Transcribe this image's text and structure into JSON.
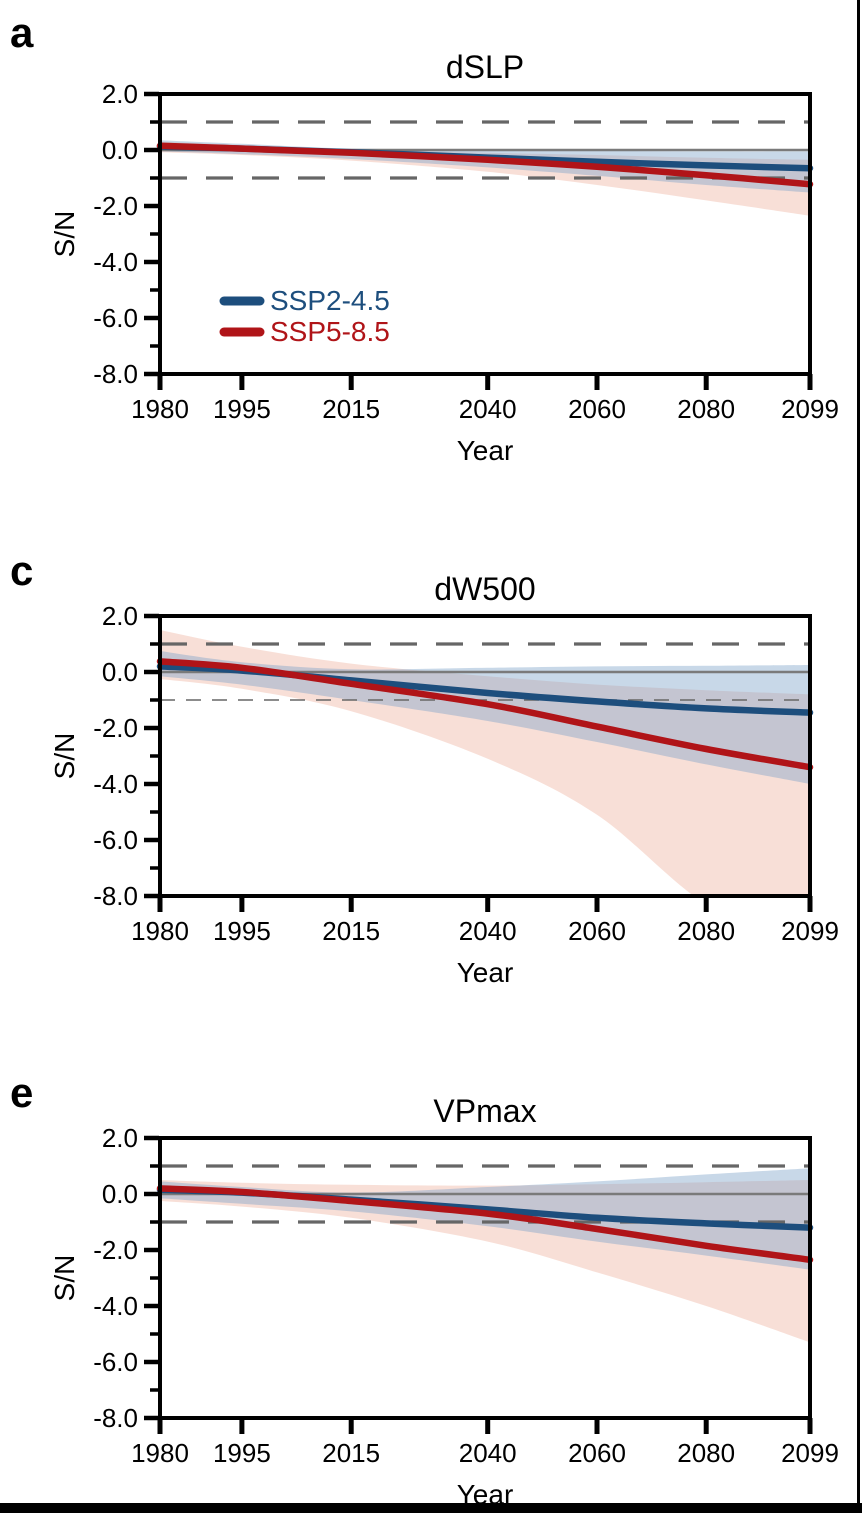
{
  "figure": {
    "xlabel": "Year",
    "ylabel": "S/N"
  },
  "chart_data": [
    {
      "type": "line",
      "panel_label": "a",
      "title": "dSLP",
      "xlabel": "Year",
      "ylabel": "S/N",
      "ylim": [
        2.0,
        -8.0
      ],
      "xlim": [
        1980,
        2099
      ],
      "grid": false,
      "x_tick_years": [
        1980,
        1995,
        2015,
        2040,
        2060,
        2080,
        2099
      ],
      "x_tick_labels": [
        "1980",
        "1995",
        "2015",
        "2040",
        "2060",
        "2080",
        "2099"
      ],
      "y_tick_values": [
        2.0,
        0.0,
        -2.0,
        -4.0,
        -6.0,
        -8.0
      ],
      "y_tick_labels": [
        "2.0",
        "0.0",
        "-2.0",
        "-4.0",
        "-6.0",
        "-8.0"
      ],
      "y_minor_ticks": [
        1.0,
        -1.0,
        -3.0,
        -5.0,
        -7.0
      ],
      "reference_lines": [
        {
          "value": 1.0,
          "style": "dashed",
          "weight": "normal"
        },
        {
          "value": 0.0,
          "style": "solid",
          "weight": "normal"
        },
        {
          "value": -1.0,
          "style": "dashed",
          "weight": "normal"
        }
      ],
      "anchor_years": [
        1980,
        1995,
        2015,
        2040,
        2060,
        2080,
        2099
      ],
      "series": [
        {
          "name": "SSP2-4.5",
          "color": "#1d4e7d",
          "band_color": "#7da3c7",
          "band_opacity": 0.42,
          "values": [
            0.12,
            0.05,
            -0.08,
            -0.27,
            -0.42,
            -0.55,
            -0.65
          ],
          "band_upper": [
            0.35,
            0.22,
            0.05,
            -0.02,
            -0.03,
            -0.05,
            -0.05
          ],
          "band_lower": [
            -0.05,
            -0.15,
            -0.32,
            -0.62,
            -0.92,
            -1.25,
            -1.52
          ]
        },
        {
          "name": "SSP5-8.5",
          "color": "#b01418",
          "band_color": "#e9967a",
          "band_opacity": 0.3,
          "values": [
            0.15,
            0.05,
            -0.1,
            -0.35,
            -0.6,
            -0.9,
            -1.22
          ],
          "band_upper": [
            0.3,
            0.18,
            0.0,
            -0.1,
            -0.18,
            -0.28,
            -0.35
          ],
          "band_lower": [
            -0.08,
            -0.18,
            -0.38,
            -0.78,
            -1.25,
            -1.8,
            -2.35
          ]
        }
      ],
      "legend": {
        "position": "lower-left",
        "entries": [
          "SSP2-4.5",
          "SSP5-8.5"
        ]
      }
    },
    {
      "type": "line",
      "panel_label": "c",
      "title": "dW500",
      "xlabel": "Year",
      "ylabel": "S/N",
      "ylim": [
        2.0,
        -8.0
      ],
      "xlim": [
        1980,
        2099
      ],
      "grid": false,
      "x_tick_years": [
        1980,
        1995,
        2015,
        2040,
        2060,
        2080,
        2099
      ],
      "x_tick_labels": [
        "1980",
        "1995",
        "2015",
        "2040",
        "2060",
        "2080",
        "2099"
      ],
      "y_tick_values": [
        2.0,
        0.0,
        -2.0,
        -4.0,
        -6.0,
        -8.0
      ],
      "y_tick_labels": [
        "2.0",
        "0.0",
        "-2.0",
        "-4.0",
        "-6.0",
        "-8.0"
      ],
      "y_minor_ticks": [
        1.0,
        -1.0,
        -3.0,
        -5.0,
        -7.0
      ],
      "reference_lines": [
        {
          "value": 1.0,
          "style": "dashed",
          "weight": "normal"
        },
        {
          "value": 0.0,
          "style": "solid",
          "weight": "normal"
        },
        {
          "value": -1.0,
          "style": "dashed",
          "weight": "thin"
        }
      ],
      "anchor_years": [
        1980,
        1995,
        2015,
        2040,
        2060,
        2080,
        2099
      ],
      "series": [
        {
          "name": "SSP2-4.5",
          "color": "#1d4e7d",
          "band_color": "#7da3c7",
          "band_opacity": 0.42,
          "values": [
            0.2,
            0.05,
            -0.3,
            -0.75,
            -1.05,
            -1.3,
            -1.45
          ],
          "band_upper": [
            0.75,
            0.35,
            0.1,
            0.15,
            0.2,
            0.22,
            0.25
          ],
          "band_lower": [
            -0.15,
            -0.45,
            -1.0,
            -1.75,
            -2.5,
            -3.3,
            -4.0
          ]
        },
        {
          "name": "SSP5-8.5",
          "color": "#b01418",
          "band_color": "#e9967a",
          "band_opacity": 0.3,
          "values": [
            0.38,
            0.15,
            -0.42,
            -1.15,
            -1.95,
            -2.75,
            -3.4
          ],
          "band_upper": [
            1.5,
            0.9,
            0.3,
            -0.15,
            -0.45,
            -0.65,
            -0.8
          ],
          "band_lower": [
            -0.25,
            -0.6,
            -1.4,
            -3.1,
            -5.1,
            -8.3,
            -9.8
          ]
        }
      ],
      "legend": null
    },
    {
      "type": "line",
      "panel_label": "e",
      "title": "VPmax",
      "xlabel": "Year",
      "ylabel": "S/N",
      "ylim": [
        2.0,
        -8.0
      ],
      "xlim": [
        1980,
        2099
      ],
      "grid": false,
      "x_tick_years": [
        1980,
        1995,
        2015,
        2040,
        2060,
        2080,
        2099
      ],
      "x_tick_labels": [
        "1980",
        "1995",
        "2015",
        "2040",
        "2060",
        "2080",
        "2099"
      ],
      "y_tick_values": [
        2.0,
        0.0,
        -2.0,
        -4.0,
        -6.0,
        -8.0
      ],
      "y_tick_labels": [
        "2.0",
        "0.0",
        "-2.0",
        "-4.0",
        "-6.0",
        "-8.0"
      ],
      "y_minor_ticks": [
        1.0,
        -1.0,
        -3.0,
        -5.0,
        -7.0
      ],
      "reference_lines": [
        {
          "value": 1.0,
          "style": "dashed",
          "weight": "normal"
        },
        {
          "value": 0.0,
          "style": "solid",
          "weight": "normal"
        },
        {
          "value": -1.0,
          "style": "dashed",
          "weight": "normal"
        }
      ],
      "anchor_years": [
        1980,
        1995,
        2015,
        2040,
        2060,
        2080,
        2099
      ],
      "series": [
        {
          "name": "SSP2-4.5",
          "color": "#1d4e7d",
          "band_color": "#7da3c7",
          "band_opacity": 0.42,
          "values": [
            0.15,
            0.05,
            -0.2,
            -0.55,
            -0.85,
            -1.05,
            -1.2
          ],
          "band_upper": [
            0.45,
            0.25,
            0.05,
            0.25,
            0.45,
            0.7,
            0.92
          ],
          "band_lower": [
            -0.15,
            -0.35,
            -0.62,
            -1.15,
            -1.7,
            -2.2,
            -2.7
          ]
        },
        {
          "name": "SSP5-8.5",
          "color": "#b01418",
          "band_color": "#e9967a",
          "band_opacity": 0.3,
          "values": [
            0.2,
            0.07,
            -0.25,
            -0.7,
            -1.25,
            -1.85,
            -2.35
          ],
          "band_upper": [
            0.5,
            0.4,
            0.33,
            0.3,
            0.35,
            0.42,
            0.5
          ],
          "band_lower": [
            -0.25,
            -0.45,
            -0.85,
            -1.7,
            -2.8,
            -4.0,
            -5.3
          ]
        }
      ],
      "legend": null
    }
  ]
}
